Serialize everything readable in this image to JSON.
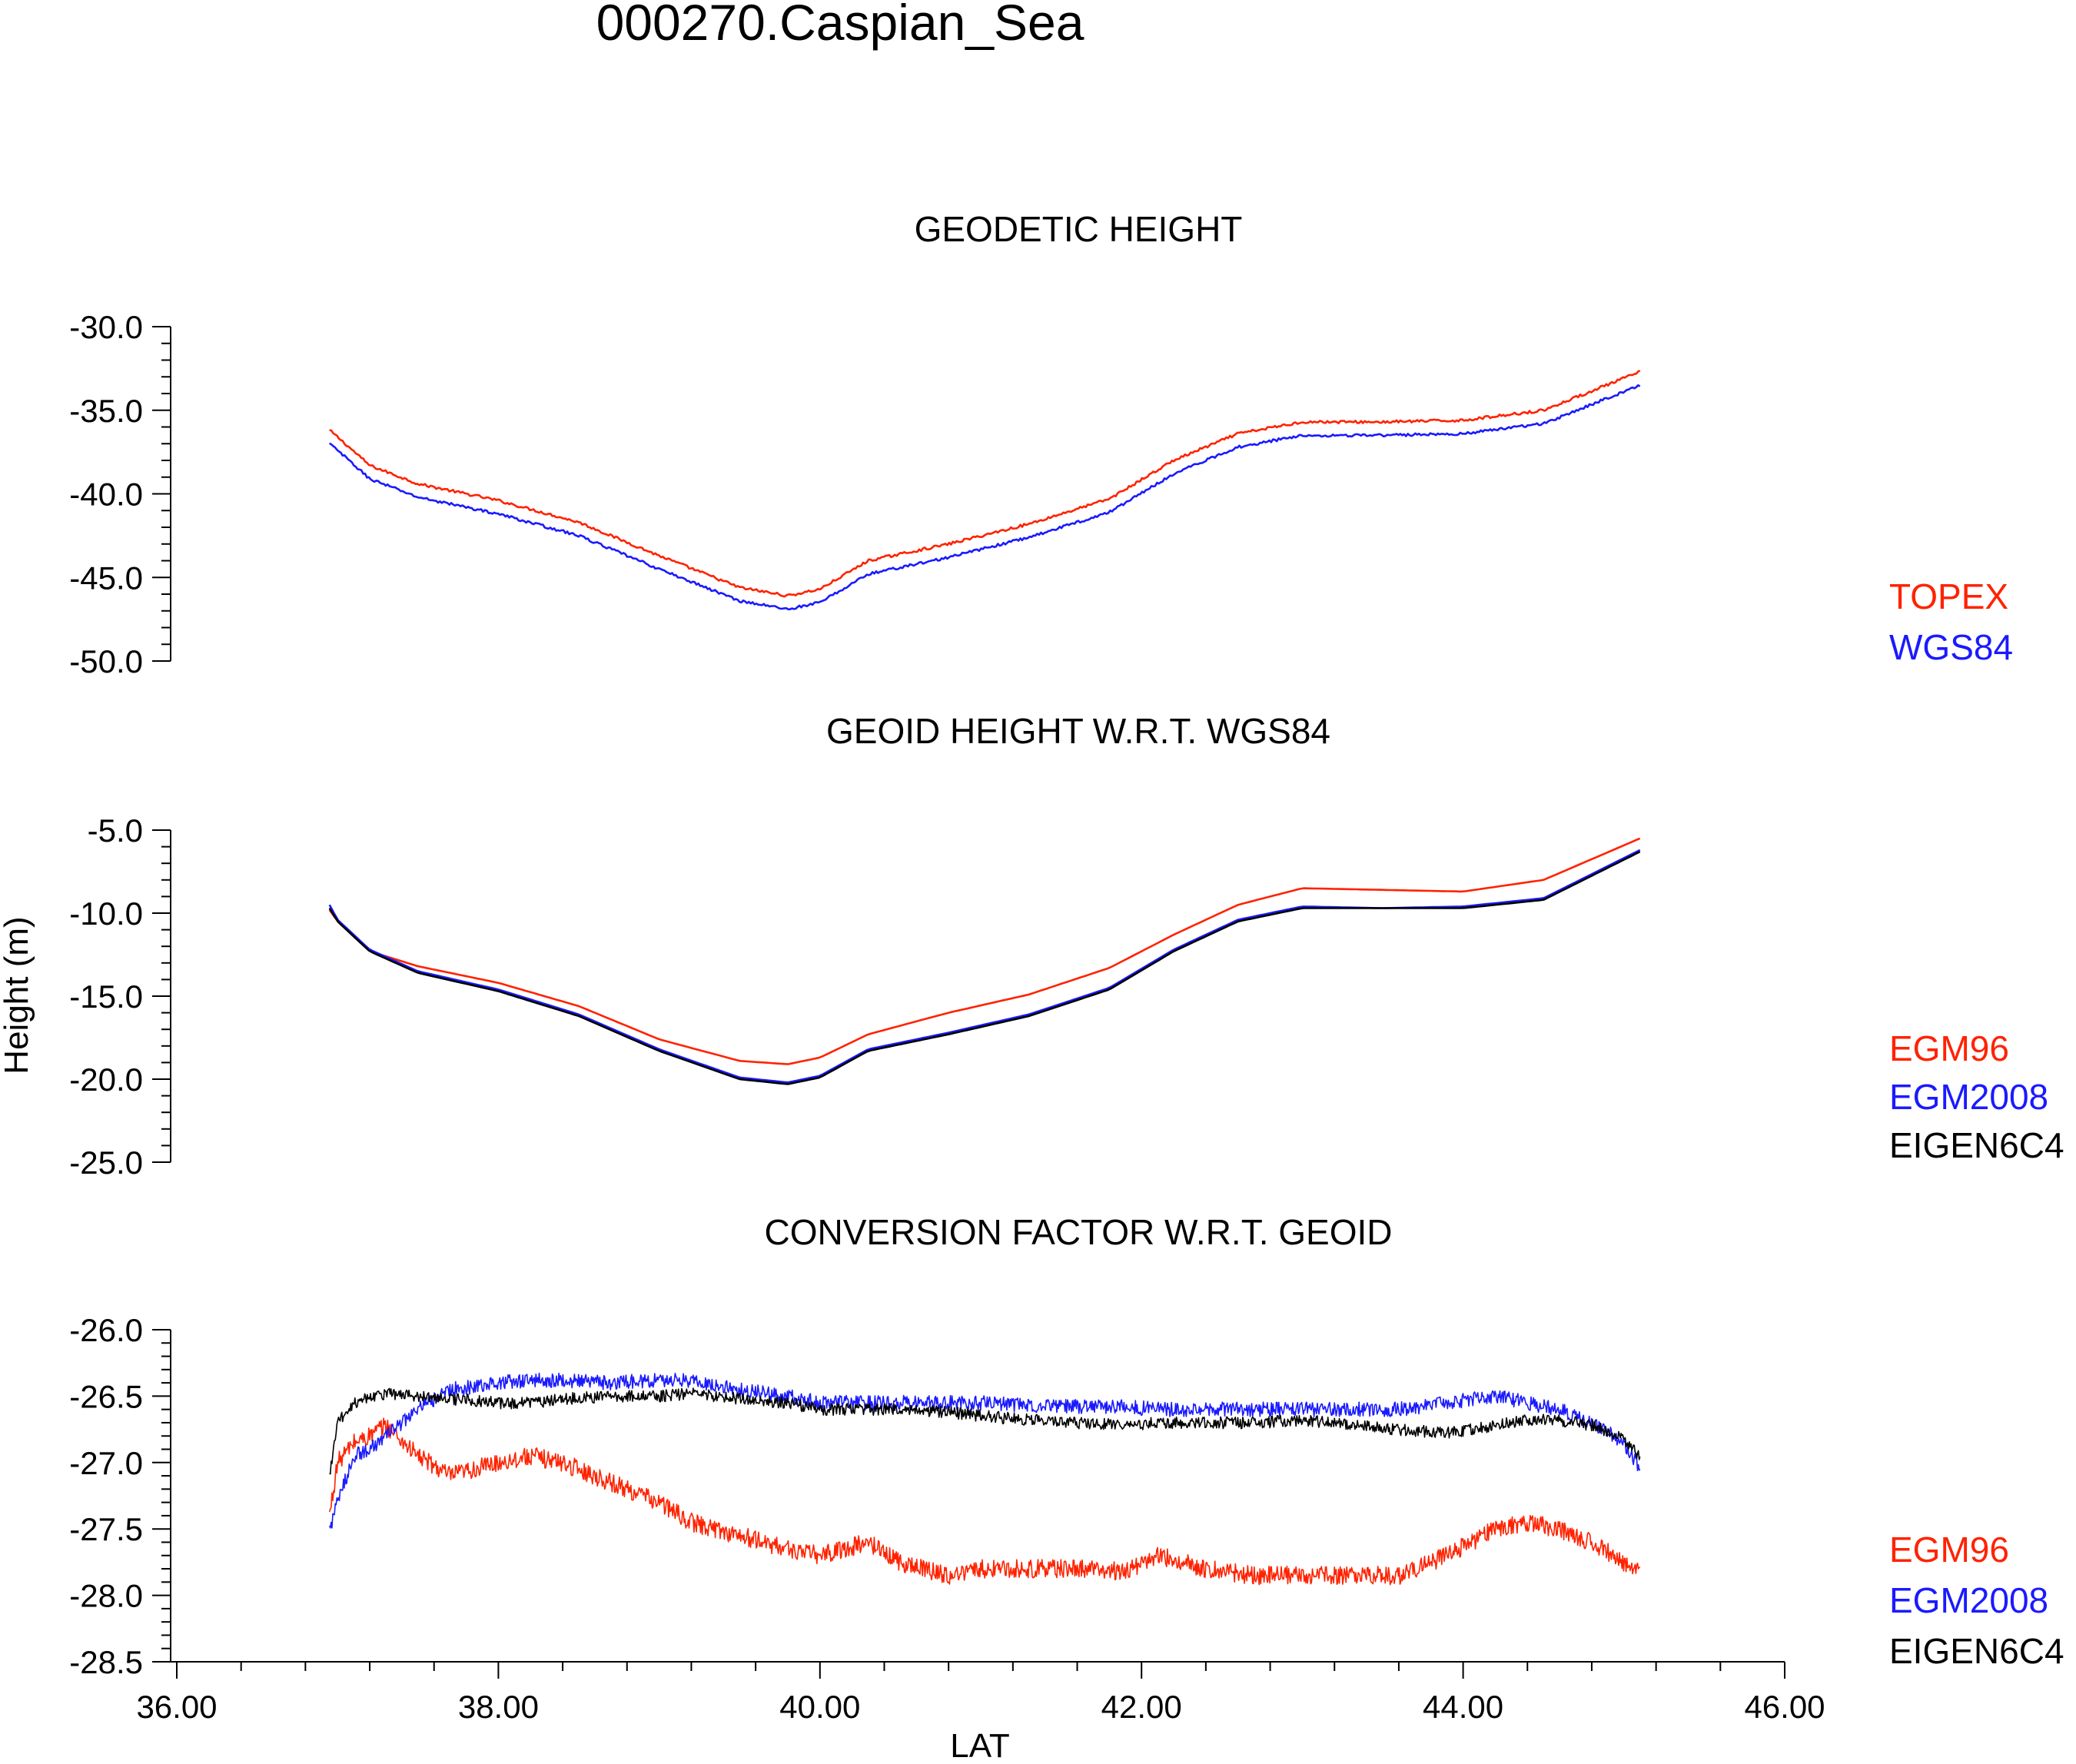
{
  "title": "000270.Caspian_Sea",
  "ylabel": "Height (m)",
  "xlabel": "LAT",
  "colors": {
    "red": "#ff2200",
    "blue": "#1a1aff",
    "black": "#000000"
  },
  "xticks": [
    "36.00",
    "38.00",
    "40.00",
    "42.00",
    "44.00",
    "46.00"
  ],
  "chart_data": [
    {
      "type": "line",
      "title": "GEODETIC HEIGHT",
      "xlim": [
        36,
        46
      ],
      "ylim": [
        -50,
        -30
      ],
      "yticks": [
        "-30.0",
        "-35.0",
        "-40.0",
        "-45.0",
        "-50.0"
      ],
      "x": [
        36.95,
        37.0,
        37.2,
        37.5,
        38.0,
        38.5,
        39.0,
        39.5,
        39.8,
        40.0,
        40.3,
        40.8,
        41.3,
        41.8,
        42.2,
        42.6,
        43.0,
        43.5,
        44.0,
        44.5,
        45.1
      ],
      "series": [
        {
          "name": "TOPEX",
          "color": "#ff2200",
          "values": [
            -36.2,
            -36.6,
            -38.3,
            -39.4,
            -40.4,
            -41.7,
            -43.7,
            -45.6,
            -46.1,
            -45.7,
            -44.0,
            -43.0,
            -41.8,
            -40.3,
            -38.0,
            -36.4,
            -35.7,
            -35.7,
            -35.6,
            -35.0,
            -32.7
          ]
        },
        {
          "name": "WGS84",
          "color": "#1a1aff",
          "values": [
            -37.0,
            -37.4,
            -39.1,
            -40.2,
            -41.2,
            -42.5,
            -44.5,
            -46.4,
            -46.9,
            -46.5,
            -44.8,
            -43.8,
            -42.6,
            -41.1,
            -38.8,
            -37.2,
            -36.5,
            -36.5,
            -36.4,
            -35.8,
            -33.5
          ]
        }
      ]
    },
    {
      "type": "line",
      "title": "GEOID HEIGHT W.R.T. WGS84",
      "xlim": [
        36,
        46
      ],
      "ylim": [
        -25,
        -5
      ],
      "yticks": [
        "-5.0",
        "-10.0",
        "-15.0",
        "-20.0",
        "-25.0"
      ],
      "x": [
        36.95,
        37.0,
        37.2,
        37.5,
        38.0,
        38.5,
        39.0,
        39.5,
        39.8,
        40.0,
        40.3,
        40.8,
        41.3,
        41.8,
        42.2,
        42.6,
        43.0,
        43.5,
        44.0,
        44.5,
        45.1
      ],
      "series": [
        {
          "name": "EGM96",
          "color": "#ff2200",
          "values": [
            -9.8,
            -10.5,
            -12.3,
            -13.2,
            -14.2,
            -15.6,
            -17.6,
            -18.9,
            -19.1,
            -18.7,
            -17.3,
            -16.0,
            -14.9,
            -13.3,
            -11.3,
            -9.5,
            -8.5,
            -8.6,
            -8.7,
            -8.0,
            -5.5
          ]
        },
        {
          "name": "EGM2008",
          "color": "#1a1aff",
          "values": [
            -9.5,
            -10.4,
            -12.2,
            -13.5,
            -14.6,
            -16.1,
            -18.2,
            -19.9,
            -20.2,
            -19.8,
            -18.2,
            -17.2,
            -16.1,
            -14.5,
            -12.2,
            -10.4,
            -9.6,
            -9.7,
            -9.6,
            -9.1,
            -6.2
          ]
        },
        {
          "name": "EIGEN6C4",
          "color": "#000000",
          "values": [
            -9.7,
            -10.5,
            -12.3,
            -13.6,
            -14.7,
            -16.2,
            -18.3,
            -20.0,
            -20.3,
            -19.9,
            -18.3,
            -17.3,
            -16.2,
            -14.6,
            -12.3,
            -10.5,
            -9.7,
            -9.7,
            -9.7,
            -9.2,
            -6.3
          ]
        }
      ]
    },
    {
      "type": "line",
      "title": "CONVERSION FACTOR W.R.T. GEOID",
      "xlim": [
        36,
        46
      ],
      "ylim": [
        -28.5,
        -26
      ],
      "yticks": [
        "-26.0",
        "-26.5",
        "-27.0",
        "-27.5",
        "-28.0",
        "-28.5"
      ],
      "x": [
        36.95,
        37.0,
        37.1,
        37.2,
        37.3,
        37.5,
        37.7,
        38.0,
        38.2,
        38.4,
        38.7,
        39.0,
        39.2,
        39.5,
        39.8,
        40.0,
        40.3,
        40.5,
        40.8,
        41.0,
        41.3,
        41.6,
        41.9,
        42.1,
        42.4,
        42.7,
        43.0,
        43.3,
        43.6,
        43.9,
        44.2,
        44.4,
        44.6,
        44.8,
        45.0,
        45.1
      ],
      "series": [
        {
          "name": "EGM96",
          "color": "#ff2200",
          "values": [
            -27.4,
            -27.0,
            -26.85,
            -26.8,
            -26.72,
            -26.95,
            -27.1,
            -27.0,
            -26.95,
            -27.0,
            -27.15,
            -27.3,
            -27.45,
            -27.55,
            -27.65,
            -27.7,
            -27.6,
            -27.75,
            -27.85,
            -27.8,
            -27.8,
            -27.8,
            -27.82,
            -27.7,
            -27.8,
            -27.85,
            -27.85,
            -27.85,
            -27.85,
            -27.7,
            -27.5,
            -27.45,
            -27.5,
            -27.6,
            -27.75,
            -27.8
          ]
        },
        {
          "name": "EGM2008",
          "color": "#1a1aff",
          "values": [
            -27.5,
            -27.3,
            -26.95,
            -26.9,
            -26.8,
            -26.6,
            -26.45,
            -26.4,
            -26.38,
            -26.38,
            -26.4,
            -26.38,
            -26.38,
            -26.45,
            -26.5,
            -26.55,
            -26.55,
            -26.55,
            -26.55,
            -26.55,
            -26.57,
            -26.58,
            -26.58,
            -26.6,
            -26.6,
            -26.6,
            -26.6,
            -26.6,
            -26.6,
            -26.55,
            -26.5,
            -26.55,
            -26.6,
            -26.7,
            -26.85,
            -27.05
          ]
        },
        {
          "name": "EIGEN6C4",
          "color": "#000000",
          "values": [
            -27.1,
            -26.7,
            -26.55,
            -26.5,
            -26.48,
            -26.5,
            -26.52,
            -26.55,
            -26.55,
            -26.52,
            -26.5,
            -26.5,
            -26.48,
            -26.52,
            -26.55,
            -26.6,
            -26.6,
            -26.6,
            -26.62,
            -26.65,
            -26.68,
            -26.7,
            -26.72,
            -26.7,
            -26.7,
            -26.7,
            -26.68,
            -26.72,
            -26.75,
            -26.78,
            -26.72,
            -26.68,
            -26.68,
            -26.72,
            -26.82,
            -26.95
          ]
        }
      ]
    }
  ]
}
